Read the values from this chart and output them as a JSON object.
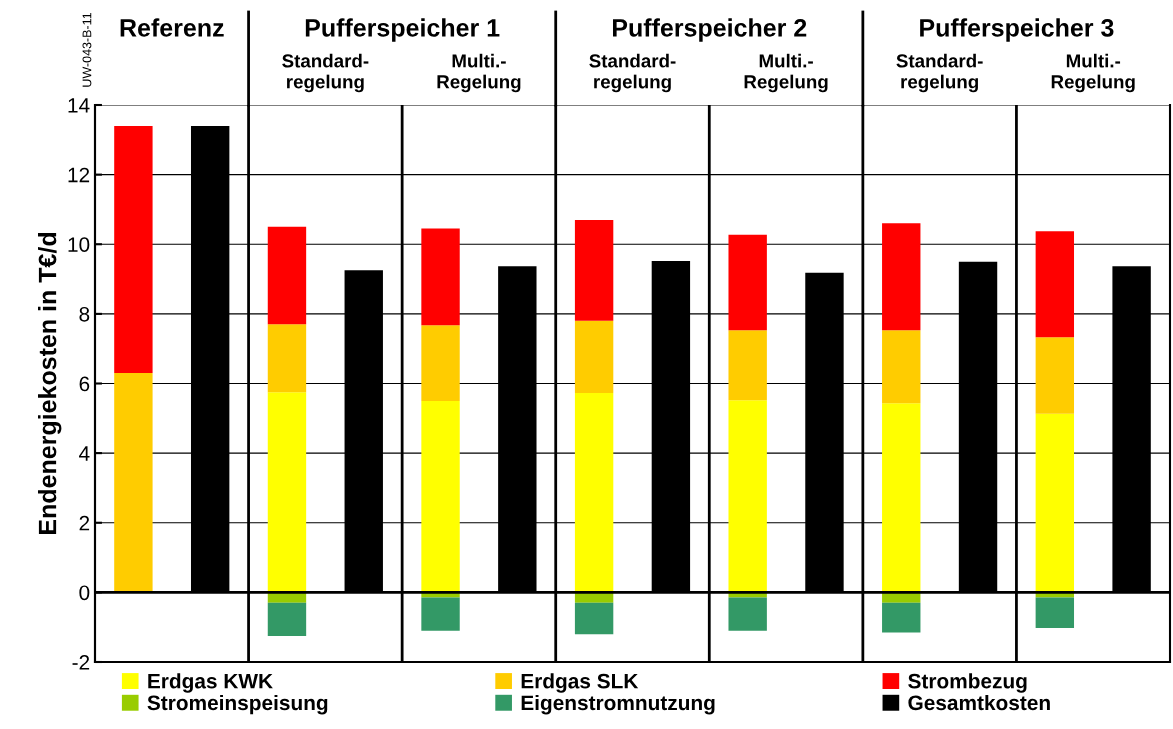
{
  "chart_data": {
    "type": "bar",
    "stacked": true,
    "ylabel": "Endenergiekosten in T€/d",
    "categories": [
      null,
      null,
      null,
      null,
      null,
      null,
      null,
      null,
      null,
      null,
      null,
      null,
      null,
      null
    ],
    "series": [
      {
        "name": "Erdgas KWK",
        "color": "#ffff00",
        "values": [
          null,
          null,
          5.75,
          null,
          5.5,
          null,
          5.73,
          null,
          5.52,
          null,
          5.43,
          null,
          5.13,
          null
        ]
      },
      {
        "name": "Erdgas SLK",
        "color": "#ffcc00",
        "values": [
          6.3,
          null,
          1.95,
          null,
          2.17,
          null,
          2.07,
          null,
          2.01,
          null,
          2.1,
          null,
          2.2,
          null
        ]
      },
      {
        "name": "Strombezug",
        "color": "#ff0000",
        "values": [
          7.1,
          null,
          2.8,
          null,
          2.78,
          null,
          2.9,
          null,
          2.74,
          null,
          3.07,
          null,
          3.04,
          null
        ]
      },
      {
        "name": "Stromeinspeisung",
        "color": "#99cc00",
        "values": [
          null,
          null,
          -0.3,
          null,
          -0.15,
          null,
          -0.3,
          null,
          -0.15,
          null,
          -0.3,
          null,
          -0.15,
          null
        ]
      },
      {
        "name": "Eigenstromnutzung",
        "color": "#339966",
        "values": [
          null,
          null,
          -0.95,
          null,
          -0.95,
          null,
          -0.9,
          null,
          -0.95,
          null,
          -0.85,
          null,
          -0.87,
          null
        ]
      },
      {
        "name": "Gesamtkosten",
        "color": "#000000",
        "values": [
          null,
          13.4,
          null,
          9.25,
          null,
          9.37,
          null,
          9.52,
          null,
          9.18,
          null,
          9.5,
          null,
          9.37
        ]
      }
    ],
    "ylim": [
      -2,
      14
    ],
    "yticks": [
      -2,
      0,
      2,
      4,
      6,
      8,
      10,
      12,
      14
    ],
    "grid": "y",
    "legend": "bottom",
    "annotations": [
      "UW-043-B-11",
      "Referenz",
      "Pufferspeicher 1",
      "Standard-\nregelung",
      "Multi.-\nRegelung",
      "Pufferspeicher 2",
      "Standard-\nregelung",
      "Multi.-\nRegelung",
      "Pufferspeicher 3",
      "Standard-\nregelung",
      "Multi.-\nRegelung"
    ]
  }
}
